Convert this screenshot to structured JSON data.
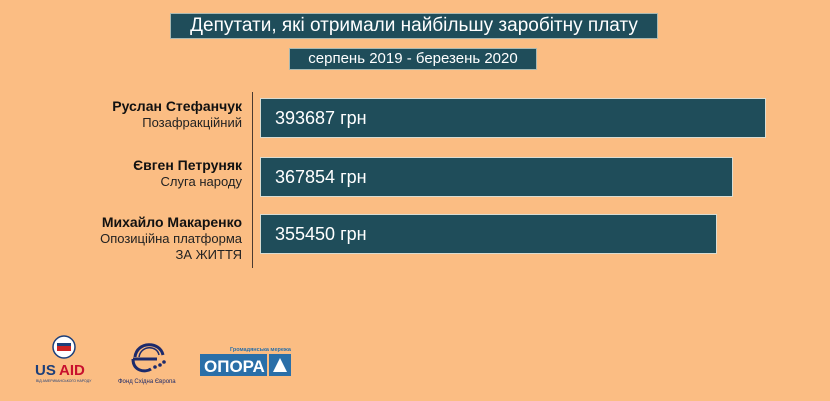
{
  "chart_data": {
    "type": "bar",
    "orientation": "horizontal",
    "title": "Депутати, які отримали найбільшу заробітну плату",
    "subtitle": "серпень 2019 - березень 2020",
    "categories": [
      "Руслан Стефанчук",
      "Євген Петруняк",
      "Михайло Макаренко"
    ],
    "parties": [
      [
        "Позафракційний"
      ],
      [
        "Слуга народу"
      ],
      [
        "Опозиційна платформа",
        "ЗА ЖИТТЯ"
      ]
    ],
    "values": [
      393687,
      367854,
      355450
    ],
    "value_labels": [
      "393687 грн",
      "367854 грн",
      "355450 грн"
    ],
    "unit": "грн",
    "xlim": [
      0,
      393687
    ],
    "grid": false,
    "colors": {
      "bar": "#1f4d5a",
      "background": "#fbbd83"
    }
  },
  "logos": {
    "usaid": {
      "text": "USAID",
      "subtext": "ВІД АМЕРИКАНСЬКОГО НАРОДУ"
    },
    "fund": {
      "text": "Фонд Східна Європа"
    },
    "opora": {
      "text": "ОПОРА",
      "subtext": "Громадянська мережа"
    }
  }
}
